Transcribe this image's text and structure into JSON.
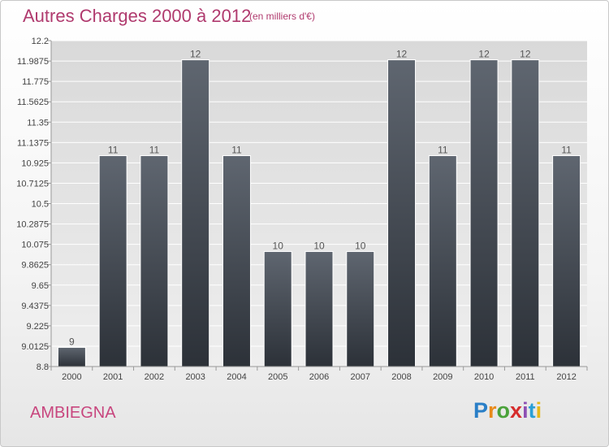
{
  "header": {
    "title": "Autres Charges 2000 à 2012",
    "subtitle": "(en milliers d'€)"
  },
  "footer": {
    "town": "AMBIEGNA",
    "logo": {
      "letters": [
        "P",
        "r",
        "o",
        "x",
        "i",
        "t",
        "i"
      ],
      "colors": [
        "#2a7fc7",
        "#e88a1a",
        "#4aa23a",
        "#d62c2c",
        "#8d4fb3",
        "#2a9fd6",
        "#e6b81a"
      ]
    }
  },
  "colors": {
    "bar_top": "#5f6670",
    "bar_bottom": "#2c3138",
    "axis": "#999999",
    "grid": "#ffffff",
    "title": "#b03a6e"
  },
  "chart_data": {
    "type": "bar",
    "title": "Autres Charges 2000 à 2012",
    "subtitle": "(en milliers d'€)",
    "xlabel": "",
    "ylabel": "",
    "ylim": [
      8.8,
      12.2
    ],
    "grid": true,
    "categories": [
      "2000",
      "2001",
      "2002",
      "2003",
      "2004",
      "2005",
      "2006",
      "2007",
      "2008",
      "2009",
      "2010",
      "2011",
      "2012"
    ],
    "values": [
      9,
      11,
      11,
      12,
      11,
      10,
      10,
      10,
      12,
      11,
      12,
      12,
      11
    ],
    "data_labels": [
      "9",
      "11",
      "11",
      "12",
      "11",
      "10",
      "10",
      "10",
      "12",
      "11",
      "12",
      "12",
      "11"
    ],
    "y_ticks": [
      {
        "value": 8.8,
        "label": "8.8"
      },
      {
        "value": 9.0125,
        "label": "9.0125"
      },
      {
        "value": 9.225,
        "label": "9.225"
      },
      {
        "value": 9.4375,
        "label": "9.4375"
      },
      {
        "value": 9.65,
        "label": "9.65"
      },
      {
        "value": 9.8625,
        "label": "9.8625"
      },
      {
        "value": 10.075,
        "label": "10.075"
      },
      {
        "value": 10.2875,
        "label": "10.2875"
      },
      {
        "value": 10.5,
        "label": "10.5"
      },
      {
        "value": 10.7125,
        "label": "10.7125"
      },
      {
        "value": 10.925,
        "label": "10.925"
      },
      {
        "value": 11.1375,
        "label": "11.1375"
      },
      {
        "value": 11.35,
        "label": "11.35"
      },
      {
        "value": 11.5625,
        "label": "11.5625"
      },
      {
        "value": 11.775,
        "label": "11.775"
      },
      {
        "value": 11.9875,
        "label": "11.9875"
      },
      {
        "value": 12.2,
        "label": "12.2"
      }
    ]
  }
}
